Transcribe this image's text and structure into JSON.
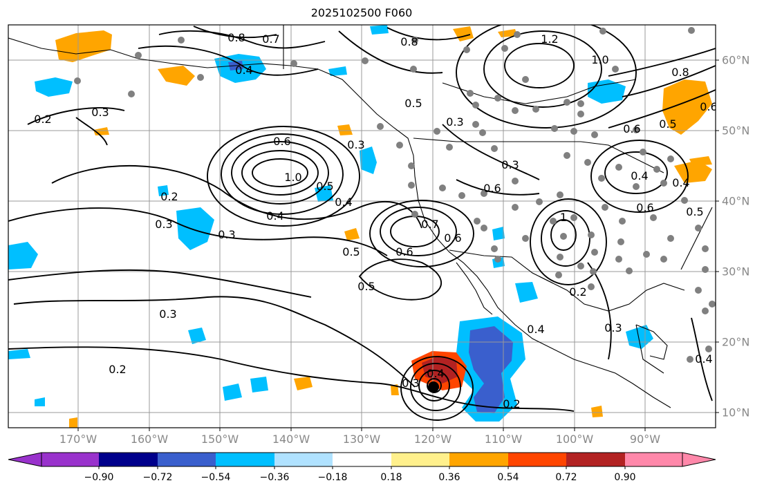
{
  "title": "2025102500 F060",
  "lon_labels": [
    "170°W",
    "160°W",
    "150°W",
    "140°W",
    "130°W",
    "120°W",
    "110°W",
    "100°W",
    "90°W"
  ],
  "lat_labels": [
    "60°N",
    "50°N",
    "40°N",
    "30°N",
    "20°N",
    "10°N"
  ],
  "colorbar": {
    "ticks": [
      "−0.90",
      "−0.72",
      "−0.54",
      "−0.36",
      "−0.18",
      "0.18",
      "0.36",
      "0.54",
      "0.72",
      "0.90"
    ],
    "colors": [
      "#9932cc",
      "#00008b",
      "#3a5fcd",
      "#00bfff",
      "#b0e2ff",
      "#ffffff",
      "#fff08c",
      "#ffa500",
      "#ff4500",
      "#b22222",
      "#ff88aa"
    ]
  },
  "contour_labels": [
    "0.8",
    "0.7",
    "0.8",
    "1.2",
    "1.0",
    "0.8",
    "0.4",
    "0.3",
    "0.5",
    "0.2",
    "0.3",
    "0.6",
    "0.6",
    "1.0",
    "0.5",
    "0.3",
    "0.3",
    "0.5",
    "0.4",
    "0.4",
    "0.2",
    "0.3",
    "0.3",
    "0.7",
    "0.6",
    "0.5",
    "0.6",
    "0.5",
    "1",
    "0.6",
    "0.4",
    "0.6",
    "0.5",
    "0.3",
    "0.2",
    "0.3",
    "0.4",
    "0.4",
    "0.3",
    "0.2",
    "0.2",
    "0.4",
    "0.6",
    "0.4"
  ]
}
